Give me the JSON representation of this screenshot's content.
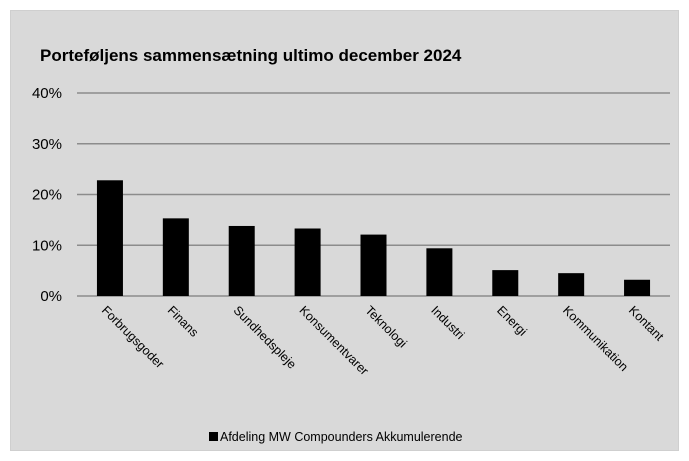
{
  "chart_data": {
    "type": "bar",
    "title": "Porteføljens sammensætning ultimo december 2024",
    "categories": [
      "Forbrugsgoder",
      "Finans",
      "Sundhedspleje",
      "Konsumentvarer",
      "Teknologi",
      "Industri",
      "Energi",
      "Kommunikation",
      "Kontant"
    ],
    "series": [
      {
        "name": "Afdeling MW Compounders Akkumulerende",
        "values": [
          22.8,
          15.3,
          13.8,
          13.3,
          12.1,
          9.4,
          5.1,
          4.5,
          3.2
        ],
        "color": "#000000"
      }
    ],
    "ylim": [
      0,
      40
    ],
    "yticks": [
      "0%",
      "10%",
      "20%",
      "30%",
      "40%"
    ],
    "grid": true,
    "legend_position": "bottom",
    "background": "#d9d9d9",
    "gridline_color": "#8c8c8c"
  }
}
